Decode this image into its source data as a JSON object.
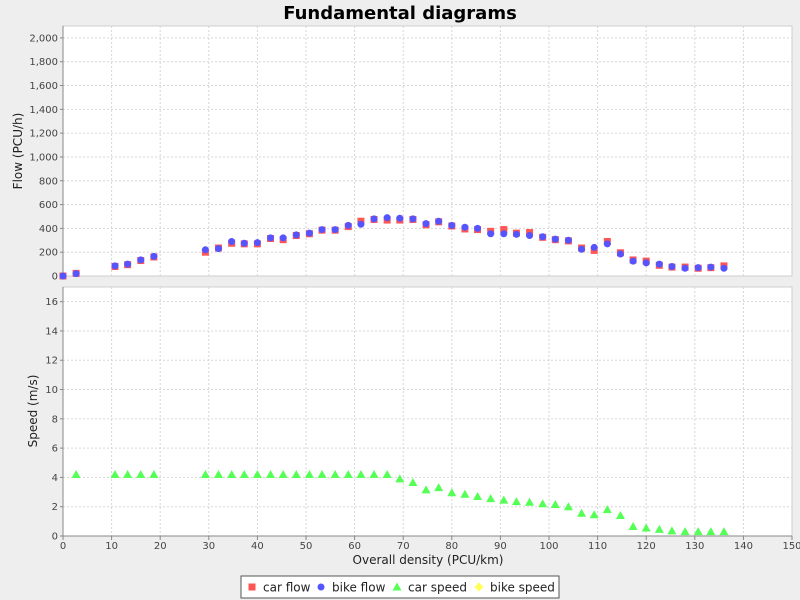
{
  "title": "Fundamental diagrams",
  "legend": {
    "placement": "bottom",
    "items": [
      {
        "label": "car flow",
        "marker": "square",
        "color": "#ff5555"
      },
      {
        "label": "bike flow",
        "marker": "circle",
        "color": "#5555ff"
      },
      {
        "label": "car speed",
        "marker": "triangle",
        "color": "#55ff55"
      },
      {
        "label": "bike speed",
        "marker": "diamond",
        "color": "#ffff55"
      }
    ]
  },
  "chart_data": {
    "type": "scatter",
    "title": "Fundamental diagrams",
    "xlabel": "Overall density (PCU/km)",
    "xlim": [
      0,
      150
    ],
    "x_ticks": [
      0,
      10,
      20,
      30,
      40,
      50,
      60,
      70,
      80,
      90,
      100,
      110,
      120,
      130,
      140,
      150
    ],
    "grid": true,
    "subplots": [
      {
        "ylabel": "Flow (PCU/h)",
        "ylim": [
          0,
          2100
        ],
        "y_ticks": [
          0,
          200,
          400,
          600,
          800,
          1000,
          1200,
          1400,
          1600,
          1800,
          2000
        ],
        "y_tick_labels": [
          "0",
          "200",
          "400",
          "600",
          "800",
          "1,000",
          "1,200",
          "1,400",
          "1,600",
          "1,800",
          "2,000"
        ],
        "series": [
          {
            "name": "car flow",
            "marker": "square",
            "color": "#ff5555",
            "points": [
              [
                0,
                0
              ],
              [
                2.7,
                22
              ],
              [
                10.7,
                80
              ],
              [
                13.3,
                95
              ],
              [
                16,
                130
              ],
              [
                18.7,
                160
              ],
              [
                29.3,
                200
              ],
              [
                32,
                235
              ],
              [
                34.7,
                275
              ],
              [
                37.3,
                270
              ],
              [
                40,
                270
              ],
              [
                42.7,
                315
              ],
              [
                45.3,
                305
              ],
              [
                48,
                340
              ],
              [
                50.7,
                355
              ],
              [
                53.3,
                385
              ],
              [
                56,
                385
              ],
              [
                58.7,
                415
              ],
              [
                61.3,
                460
              ],
              [
                64,
                475
              ],
              [
                66.7,
                470
              ],
              [
                69.3,
                470
              ],
              [
                72,
                475
              ],
              [
                74.7,
                430
              ],
              [
                77.3,
                455
              ],
              [
                80,
                420
              ],
              [
                82.7,
                395
              ],
              [
                85.3,
                390
              ],
              [
                88,
                375
              ],
              [
                90.7,
                390
              ],
              [
                93.3,
                360
              ],
              [
                96,
                365
              ],
              [
                98.7,
                325
              ],
              [
                101.3,
                305
              ],
              [
                104,
                295
              ],
              [
                106.7,
                235
              ],
              [
                109.3,
                215
              ],
              [
                112,
                290
              ],
              [
                114.7,
                195
              ],
              [
                117.3,
                135
              ],
              [
                120,
                125
              ],
              [
                122.7,
                90
              ],
              [
                125.3,
                75
              ],
              [
                128,
                75
              ],
              [
                130.7,
                65
              ],
              [
                133.3,
                70
              ],
              [
                136,
                85
              ]
            ]
          },
          {
            "name": "bike flow",
            "marker": "circle",
            "color": "#5555ff",
            "points": [
              [
                0,
                0
              ],
              [
                2.7,
                20
              ],
              [
                10.7,
                85
              ],
              [
                13.3,
                100
              ],
              [
                16,
                135
              ],
              [
                18.7,
                165
              ],
              [
                29.3,
                220
              ],
              [
                32,
                230
              ],
              [
                34.7,
                290
              ],
              [
                37.3,
                275
              ],
              [
                40,
                280
              ],
              [
                42.7,
                320
              ],
              [
                45.3,
                320
              ],
              [
                48,
                345
              ],
              [
                50.7,
                360
              ],
              [
                53.3,
                390
              ],
              [
                56,
                390
              ],
              [
                58.7,
                425
              ],
              [
                61.3,
                435
              ],
              [
                64,
                480
              ],
              [
                66.7,
                490
              ],
              [
                69.3,
                485
              ],
              [
                72,
                480
              ],
              [
                74.7,
                440
              ],
              [
                77.3,
                460
              ],
              [
                80,
                425
              ],
              [
                82.7,
                410
              ],
              [
                85.3,
                400
              ],
              [
                88,
                355
              ],
              [
                90.7,
                355
              ],
              [
                93.3,
                350
              ],
              [
                96,
                340
              ],
              [
                98.7,
                330
              ],
              [
                101.3,
                310
              ],
              [
                104,
                300
              ],
              [
                106.7,
                225
              ],
              [
                109.3,
                240
              ],
              [
                112,
                270
              ],
              [
                114.7,
                185
              ],
              [
                117.3,
                125
              ],
              [
                120,
                110
              ],
              [
                122.7,
                100
              ],
              [
                125.3,
                80
              ],
              [
                128,
                65
              ],
              [
                130.7,
                70
              ],
              [
                133.3,
                75
              ],
              [
                136,
                65
              ]
            ]
          }
        ]
      },
      {
        "ylabel": "Speed (m/s)",
        "ylim": [
          0,
          17
        ],
        "y_ticks": [
          0,
          2,
          4,
          6,
          8,
          10,
          12,
          14,
          16
        ],
        "y_tick_labels": [
          "0",
          "2",
          "4",
          "6",
          "8",
          "10",
          "12",
          "14",
          "16"
        ],
        "series": [
          {
            "name": "car speed",
            "marker": "triangle",
            "color": "#55ff55",
            "points": [
              [
                2.7,
                4.2
              ],
              [
                10.7,
                4.2
              ],
              [
                13.3,
                4.2
              ],
              [
                16,
                4.2
              ],
              [
                18.7,
                4.2
              ],
              [
                29.3,
                4.2
              ],
              [
                32,
                4.2
              ],
              [
                34.7,
                4.2
              ],
              [
                37.3,
                4.2
              ],
              [
                40,
                4.2
              ],
              [
                42.7,
                4.2
              ],
              [
                45.3,
                4.2
              ],
              [
                48,
                4.2
              ],
              [
                50.7,
                4.2
              ],
              [
                53.3,
                4.2
              ],
              [
                56,
                4.2
              ],
              [
                58.7,
                4.2
              ],
              [
                61.3,
                4.2
              ],
              [
                64,
                4.2
              ],
              [
                66.7,
                4.2
              ],
              [
                69.3,
                3.9
              ],
              [
                72,
                3.65
              ],
              [
                74.7,
                3.15
              ],
              [
                77.3,
                3.3
              ],
              [
                80,
                2.95
              ],
              [
                82.7,
                2.85
              ],
              [
                85.3,
                2.7
              ],
              [
                88,
                2.55
              ],
              [
                90.7,
                2.45
              ],
              [
                93.3,
                2.35
              ],
              [
                96,
                2.3
              ],
              [
                98.7,
                2.2
              ],
              [
                101.3,
                2.15
              ],
              [
                104,
                2.0
              ],
              [
                106.7,
                1.55
              ],
              [
                109.3,
                1.45
              ],
              [
                112,
                1.8
              ],
              [
                114.7,
                1.4
              ],
              [
                117.3,
                0.65
              ],
              [
                120,
                0.55
              ],
              [
                122.7,
                0.45
              ],
              [
                125.3,
                0.35
              ],
              [
                128,
                0.3
              ],
              [
                130.7,
                0.3
              ],
              [
                133.3,
                0.3
              ],
              [
                136,
                0.3
              ]
            ]
          },
          {
            "name": "bike speed",
            "marker": "diamond",
            "color": "#ffff55",
            "points": []
          }
        ]
      }
    ]
  }
}
